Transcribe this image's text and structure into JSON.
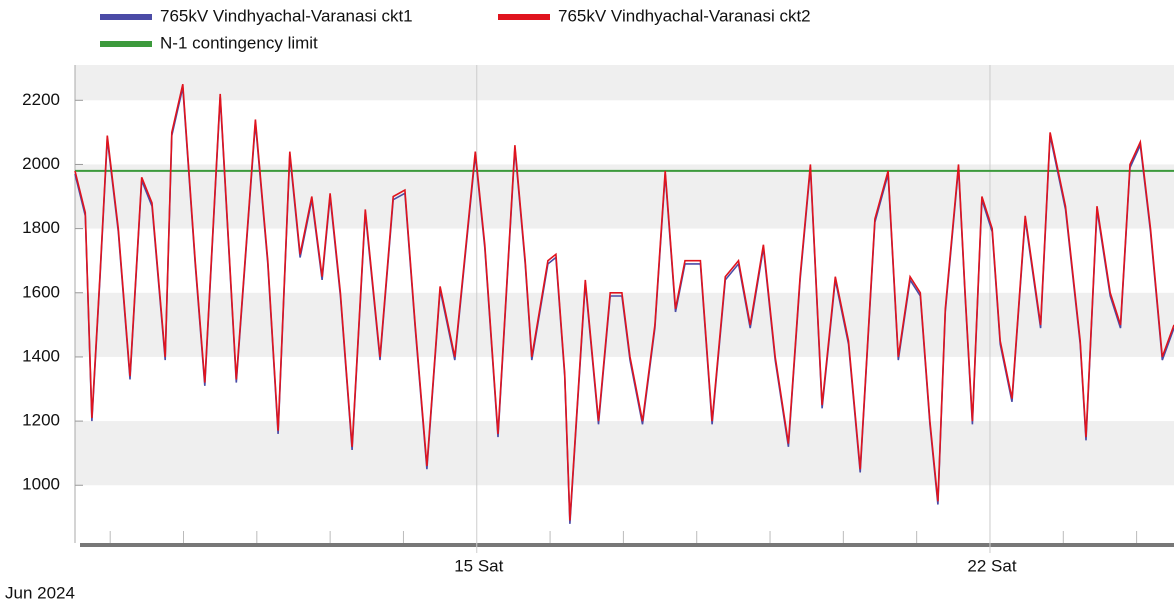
{
  "chart_data": {
    "type": "line",
    "x_label": "Jun 2024",
    "x": [
      9.52,
      9.66,
      9.75,
      9.86,
      9.96,
      10.11,
      10.27,
      10.43,
      10.57,
      10.75,
      10.84,
      10.99,
      11.16,
      11.29,
      11.5,
      11.72,
      11.98,
      12.15,
      12.29,
      12.45,
      12.59,
      12.75,
      12.89,
      13.0,
      13.14,
      13.3,
      13.48,
      13.68,
      13.86,
      14.02,
      14.16,
      14.32,
      14.5,
      14.7,
      14.98,
      15.11,
      15.29,
      15.52,
      15.66,
      15.75,
      15.97,
      16.08,
      16.2,
      16.27,
      16.48,
      16.66,
      16.82,
      16.98,
      17.09,
      17.26,
      17.43,
      17.57,
      17.71,
      17.84,
      18.05,
      18.21,
      18.39,
      18.57,
      18.73,
      18.91,
      19.07,
      19.25,
      19.41,
      19.55,
      19.71,
      19.89,
      20.07,
      20.23,
      20.43,
      20.61,
      20.75,
      20.91,
      21.05,
      21.18,
      21.29,
      21.39,
      21.57,
      21.66,
      21.76,
      21.89,
      22.03,
      22.14,
      22.3,
      22.48,
      22.69,
      22.82,
      23.03,
      23.23,
      23.31,
      23.46,
      23.64,
      23.78,
      23.91,
      24.05,
      24.19,
      24.35,
      24.51
    ],
    "series": [
      {
        "name": "765kV Vindhyachal-Varanasi ckt1",
        "color": "#4b4ba6",
        "values": [
          1970,
          1840,
          1200,
          1640,
          2080,
          1790,
          1330,
          1950,
          1870,
          1390,
          2090,
          2240,
          1690,
          1310,
          2210,
          1320,
          2130,
          1690,
          1160,
          2030,
          1710,
          1890,
          1640,
          1900,
          1590,
          1110,
          1850,
          1390,
          1890,
          1910,
          1490,
          1050,
          1610,
          1390,
          2030,
          1740,
          1150,
          2050,
          1690,
          1390,
          1690,
          1710,
          1340,
          880,
          1630,
          1190,
          1590,
          1590,
          1390,
          1190,
          1490,
          1970,
          1540,
          1690,
          1690,
          1190,
          1640,
          1690,
          1490,
          1740,
          1390,
          1120,
          1640,
          1990,
          1240,
          1640,
          1440,
          1040,
          1820,
          1970,
          1390,
          1640,
          1590,
          1190,
          940,
          1540,
          1990,
          1590,
          1190,
          1890,
          1790,
          1440,
          1260,
          1830,
          1490,
          2090,
          1860,
          1440,
          1140,
          1860,
          1590,
          1490,
          1990,
          2060,
          1790,
          1390,
          1490
        ]
      },
      {
        "name": "765kV Vindhyachal-Varanasi ckt2",
        "color": "#e0141e",
        "values": [
          1980,
          1850,
          1210,
          1650,
          2090,
          1800,
          1340,
          1960,
          1880,
          1400,
          2100,
          2250,
          1700,
          1320,
          2220,
          1330,
          2140,
          1700,
          1170,
          2040,
          1720,
          1900,
          1650,
          1910,
          1600,
          1120,
          1860,
          1400,
          1900,
          1920,
          1500,
          1060,
          1620,
          1400,
          2040,
          1750,
          1160,
          2060,
          1700,
          1400,
          1700,
          1720,
          1350,
          890,
          1640,
          1200,
          1600,
          1600,
          1400,
          1200,
          1500,
          1980,
          1550,
          1700,
          1700,
          1200,
          1650,
          1700,
          1500,
          1750,
          1400,
          1130,
          1650,
          2000,
          1250,
          1650,
          1450,
          1050,
          1830,
          1980,
          1400,
          1650,
          1600,
          1200,
          950,
          1550,
          2000,
          1600,
          1200,
          1900,
          1800,
          1450,
          1270,
          1840,
          1500,
          2100,
          1870,
          1450,
          1150,
          1870,
          1600,
          1500,
          2000,
          2070,
          1800,
          1400,
          1500
        ]
      }
    ],
    "reference_lines": [
      {
        "name": "N-1 contingency limit",
        "color": "#3c9a3c",
        "value": 1980
      }
    ],
    "xlim": [
      9.52,
      24.51
    ],
    "xticks": [
      {
        "value": 15,
        "label": "15 Sat"
      },
      {
        "value": 22,
        "label": "22 Sat"
      }
    ],
    "xminor_ticks": [
      10,
      11,
      12,
      13,
      14,
      16,
      17,
      18,
      19,
      20,
      21,
      23,
      24
    ],
    "ylim": [
      820,
      2310
    ],
    "yticks": [
      1000,
      1200,
      1400,
      1600,
      1800,
      2000,
      2200
    ],
    "grid": "bands"
  }
}
